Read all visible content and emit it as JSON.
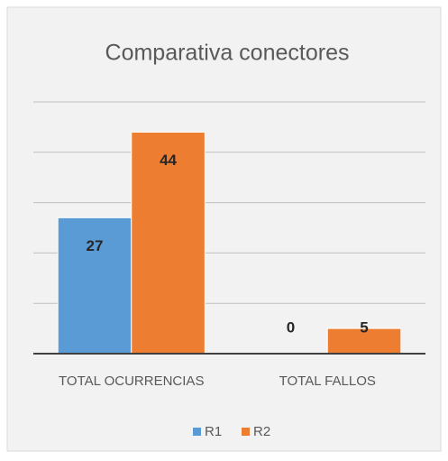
{
  "chart_data": {
    "type": "bar",
    "title": "Comparativa conectores",
    "categories": [
      "TOTAL OCURRENCIAS",
      "TOTAL FALLOS"
    ],
    "series": [
      {
        "name": "R1",
        "color": "#5b9bd5",
        "values": [
          27,
          0
        ]
      },
      {
        "name": "R2",
        "color": "#ed7d31",
        "values": [
          44,
          5
        ]
      }
    ],
    "ylim": [
      0,
      50
    ],
    "yticks": [
      0,
      10,
      20,
      30,
      40,
      50
    ],
    "grid": true,
    "legend": "bottom"
  }
}
